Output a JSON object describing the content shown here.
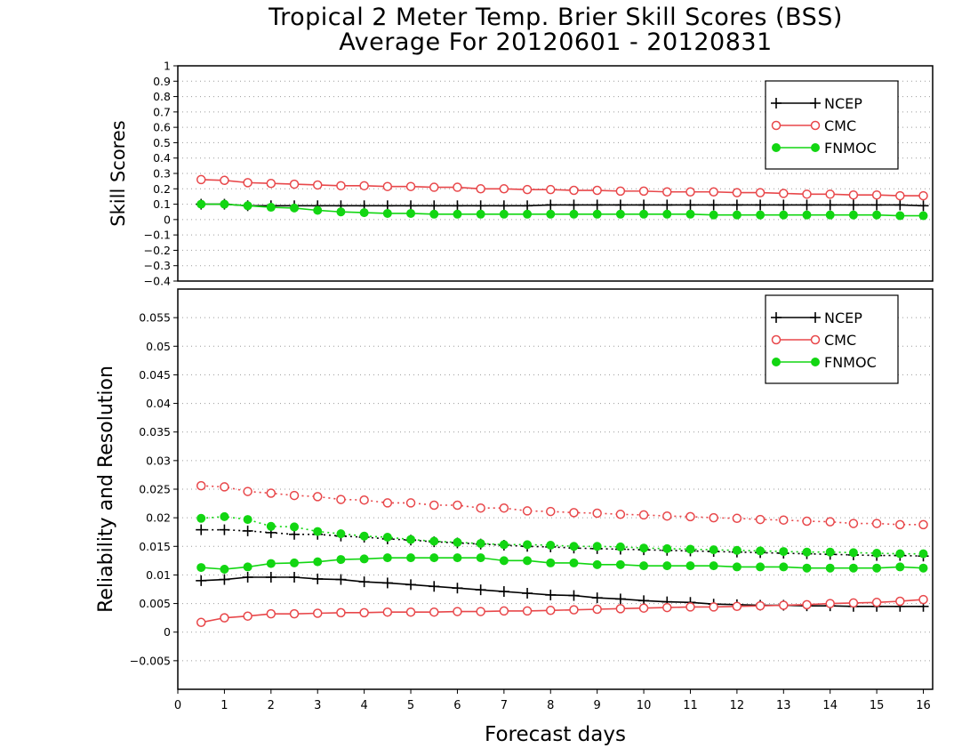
{
  "title_line1": "Tropical 2 Meter Temp. Brier Skill Scores (BSS)",
  "title_line2": "Average For 20120601 - 20120831",
  "colors": {
    "NCEP": "#000000",
    "CMC": "#e8474a",
    "FNMOC": "#12d612",
    "frame": "#000000",
    "grid": "#9a9a9a"
  },
  "chart_data": [
    {
      "type": "line",
      "ylabel": "Skill Scores",
      "xlabel": "",
      "xlim": [
        0,
        16.2
      ],
      "ylim": [
        -0.4,
        1
      ],
      "yticks": [
        -0.4,
        -0.3,
        -0.2,
        -0.1,
        0,
        0.1,
        0.2,
        0.3,
        0.4,
        0.5,
        0.6,
        0.7,
        0.8,
        0.9,
        1
      ],
      "grid": true,
      "legend_position": "top-right",
      "x": [
        0.5,
        1,
        1.5,
        2,
        2.5,
        3,
        3.5,
        4,
        4.5,
        5,
        5.5,
        6,
        6.5,
        7,
        7.5,
        8,
        8.5,
        9,
        9.5,
        10,
        10.5,
        11,
        11.5,
        12,
        12.5,
        13,
        13.5,
        14,
        14.5,
        15,
        15.5,
        16
      ],
      "series": [
        {
          "name": "NCEP",
          "marker": "plus",
          "style": "solid",
          "values": [
            0.1,
            0.1,
            0.09,
            0.09,
            0.09,
            0.09,
            0.09,
            0.09,
            0.09,
            0.09,
            0.09,
            0.09,
            0.09,
            0.09,
            0.09,
            0.095,
            0.095,
            0.095,
            0.095,
            0.095,
            0.095,
            0.095,
            0.095,
            0.095,
            0.095,
            0.095,
            0.095,
            0.095,
            0.095,
            0.095,
            0.095,
            0.09
          ]
        },
        {
          "name": "CMC",
          "marker": "open-circle",
          "style": "solid",
          "values": [
            0.26,
            0.255,
            0.24,
            0.235,
            0.23,
            0.225,
            0.22,
            0.22,
            0.215,
            0.215,
            0.21,
            0.21,
            0.2,
            0.2,
            0.195,
            0.195,
            0.19,
            0.19,
            0.185,
            0.185,
            0.18,
            0.18,
            0.18,
            0.175,
            0.175,
            0.17,
            0.165,
            0.165,
            0.16,
            0.16,
            0.155,
            0.155
          ]
        },
        {
          "name": "FNMOC",
          "marker": "filled-circle",
          "style": "solid",
          "values": [
            0.1,
            0.1,
            0.09,
            0.08,
            0.075,
            0.06,
            0.05,
            0.045,
            0.04,
            0.04,
            0.035,
            0.035,
            0.035,
            0.035,
            0.035,
            0.035,
            0.035,
            0.035,
            0.035,
            0.035,
            0.035,
            0.035,
            0.03,
            0.03,
            0.03,
            0.03,
            0.03,
            0.03,
            0.03,
            0.03,
            0.025,
            0.025
          ]
        }
      ],
      "legend": [
        "NCEP",
        "CMC",
        "FNMOC"
      ]
    },
    {
      "type": "line",
      "ylabel": "Reliability and Resolution",
      "xlabel": "Forecast days",
      "xlim": [
        0,
        16.2
      ],
      "ylim": [
        -0.01,
        0.06
      ],
      "yticks": [
        -0.005,
        0,
        0.005,
        0.01,
        0.015,
        0.02,
        0.025,
        0.03,
        0.035,
        0.04,
        0.045,
        0.05,
        0.055
      ],
      "xticks": [
        0,
        1,
        2,
        3,
        4,
        5,
        6,
        7,
        8,
        9,
        10,
        11,
        12,
        13,
        14,
        15,
        16
      ],
      "grid": true,
      "legend_position": "top-right",
      "x": [
        0.5,
        1,
        1.5,
        2,
        2.5,
        3,
        3.5,
        4,
        4.5,
        5,
        5.5,
        6,
        6.5,
        7,
        7.5,
        8,
        8.5,
        9,
        9.5,
        10,
        10.5,
        11,
        11.5,
        12,
        12.5,
        13,
        13.5,
        14,
        14.5,
        15,
        15.5,
        16
      ],
      "series": [
        {
          "name": "NCEP",
          "marker": "plus",
          "style": "solid",
          "values": [
            0.009,
            0.0092,
            0.0096,
            0.0096,
            0.0096,
            0.0093,
            0.0092,
            0.0088,
            0.0086,
            0.0083,
            0.008,
            0.0077,
            0.0074,
            0.0071,
            0.0068,
            0.0065,
            0.0064,
            0.006,
            0.0058,
            0.0055,
            0.0053,
            0.0052,
            0.0049,
            0.0048,
            0.0047,
            0.0047,
            0.0046,
            0.0046,
            0.0045,
            0.0045,
            0.0045,
            0.0045
          ]
        },
        {
          "name": "CMC",
          "marker": "open-circle",
          "style": "solid",
          "values": [
            0.0017,
            0.0025,
            0.0028,
            0.0032,
            0.0032,
            0.0033,
            0.0034,
            0.0034,
            0.0035,
            0.0035,
            0.0035,
            0.0036,
            0.0036,
            0.0037,
            0.0037,
            0.0038,
            0.0039,
            0.004,
            0.0041,
            0.0042,
            0.0043,
            0.0044,
            0.0044,
            0.0045,
            0.0046,
            0.0047,
            0.0048,
            0.005,
            0.0051,
            0.0052,
            0.0054,
            0.0057
          ]
        },
        {
          "name": "FNMOC",
          "marker": "filled-circle",
          "style": "solid",
          "values": [
            0.0113,
            0.011,
            0.0114,
            0.012,
            0.0121,
            0.0123,
            0.0127,
            0.0128,
            0.013,
            0.013,
            0.013,
            0.013,
            0.013,
            0.0125,
            0.0125,
            0.0121,
            0.0121,
            0.0118,
            0.0118,
            0.0116,
            0.0116,
            0.0116,
            0.0116,
            0.0114,
            0.0114,
            0.0114,
            0.0112,
            0.0112,
            0.0112,
            0.0112,
            0.0114,
            0.0112
          ]
        },
        {
          "name": "NCEP",
          "marker": "plus",
          "style": "dotted",
          "values": [
            0.0179,
            0.0179,
            0.0177,
            0.0174,
            0.0171,
            0.0171,
            0.0168,
            0.0166,
            0.0163,
            0.0161,
            0.0158,
            0.0156,
            0.0154,
            0.0152,
            0.015,
            0.0149,
            0.0147,
            0.0146,
            0.0145,
            0.0144,
            0.0143,
            0.0142,
            0.0141,
            0.014,
            0.0139,
            0.0138,
            0.0137,
            0.0136,
            0.0135,
            0.0134,
            0.0134,
            0.0133
          ]
        },
        {
          "name": "CMC",
          "marker": "open-circle",
          "style": "dotted",
          "values": [
            0.0256,
            0.0254,
            0.0246,
            0.0243,
            0.0239,
            0.0237,
            0.0232,
            0.0231,
            0.0226,
            0.0226,
            0.0222,
            0.0222,
            0.0217,
            0.0217,
            0.0212,
            0.0211,
            0.0209,
            0.0208,
            0.0206,
            0.0205,
            0.0203,
            0.0202,
            0.02,
            0.0199,
            0.0197,
            0.0196,
            0.0194,
            0.0193,
            0.019,
            0.019,
            0.0188,
            0.0188
          ]
        },
        {
          "name": "FNMOC",
          "marker": "filled-circle",
          "style": "dotted",
          "values": [
            0.0199,
            0.0202,
            0.0197,
            0.0185,
            0.0184,
            0.0176,
            0.0172,
            0.0168,
            0.0166,
            0.0162,
            0.0159,
            0.0157,
            0.0155,
            0.0153,
            0.0153,
            0.0152,
            0.015,
            0.015,
            0.0149,
            0.0147,
            0.0146,
            0.0145,
            0.0144,
            0.0143,
            0.0142,
            0.0141,
            0.014,
            0.014,
            0.0139,
            0.0138,
            0.0137,
            0.0137
          ]
        }
      ],
      "legend": [
        "NCEP",
        "CMC",
        "FNMOC"
      ]
    }
  ]
}
